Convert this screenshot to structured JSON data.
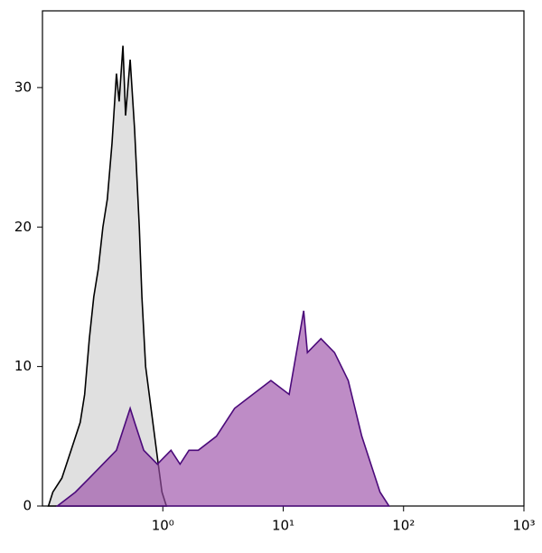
{
  "chart_data": {
    "type": "histogram-overlay",
    "xscale": "log",
    "xlim": [
      0.1,
      1000
    ],
    "ylim": [
      0,
      35.5
    ],
    "xticks": [
      {
        "value": 1,
        "label": "10⁰"
      },
      {
        "value": 10,
        "label": "10¹"
      },
      {
        "value": 100,
        "label": "10²"
      },
      {
        "value": 1000,
        "label": "10³"
      }
    ],
    "yticks": [
      0,
      10,
      20,
      30
    ],
    "series": [
      {
        "color": "#e0e0e0",
        "line_color": "#000000",
        "x": [
          0.112,
          0.122,
          0.145,
          0.173,
          0.206,
          0.224,
          0.245,
          0.267,
          0.291,
          0.318,
          0.346,
          0.378,
          0.412,
          0.434,
          0.466,
          0.49,
          0.535,
          0.583,
          0.637,
          0.67,
          0.719,
          0.798,
          0.855,
          0.917,
          0.983,
          1.07
        ],
        "values": [
          0,
          1,
          2,
          4,
          6,
          8,
          12,
          15,
          17,
          20,
          22,
          26,
          31,
          29,
          33,
          28,
          32,
          27,
          20,
          15,
          10,
          7,
          5,
          3,
          1,
          0
        ]
      },
      {
        "color": "#9b4fa8",
        "line_color": "#4b0a7a",
        "x": [
          0.133,
          0.188,
          0.245,
          0.318,
          0.412,
          0.535,
          0.583,
          0.694,
          0.901,
          1.17,
          1.39,
          1.65,
          1.97,
          2.79,
          3.95,
          5.59,
          7.91,
          11.2,
          14.8,
          15.9,
          20.6,
          26.7,
          34.7,
          45.0,
          53.5,
          63.7,
          75.7
        ],
        "values": [
          0,
          1,
          2,
          3,
          4,
          7,
          6,
          4,
          3,
          4,
          3,
          4,
          4,
          5,
          7,
          8,
          9,
          8,
          14,
          11,
          12,
          11,
          9,
          5,
          3,
          1,
          0
        ]
      }
    ]
  }
}
